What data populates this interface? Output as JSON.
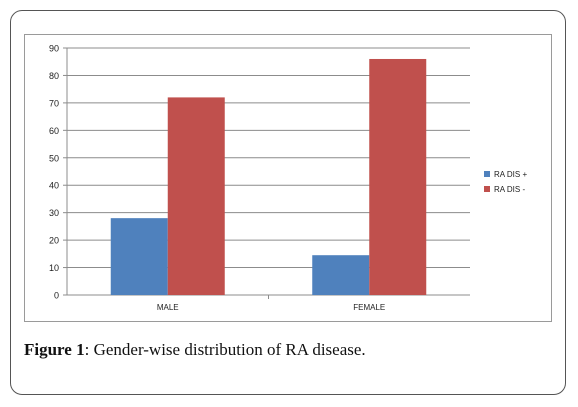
{
  "caption": {
    "label": "Figure 1",
    "text": ": Gender-wise distribution of RA disease."
  },
  "chart_data": {
    "type": "bar",
    "categories": [
      "MALE",
      "FEMALE"
    ],
    "series": [
      {
        "name": "RA DIS +",
        "values": [
          28,
          14.5
        ],
        "color": "#4f81bd"
      },
      {
        "name": "RA DIS -",
        "values": [
          72,
          86
        ],
        "color": "#c0504d"
      }
    ],
    "ylim": [
      0,
      90
    ],
    "yticks": [
      0,
      10,
      20,
      30,
      40,
      50,
      60,
      70,
      80,
      90
    ],
    "grid": true,
    "legend_position": "right"
  }
}
